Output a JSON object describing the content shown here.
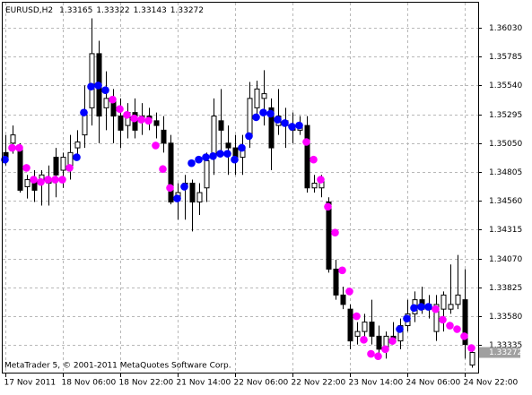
{
  "chart_data": {
    "type": "candlestick",
    "title": "EURUSD,H2",
    "footer": "MetaTrader 5, © 2001-2011 MetaQuotes Software Corp.",
    "categories": [
      "17 Nov 2011",
      null,
      null,
      null,
      null,
      null,
      null,
      null,
      "18 Nov 06:00",
      null,
      null,
      null,
      null,
      null,
      null,
      null,
      "18 Nov 22:00",
      null,
      null,
      null,
      null,
      null,
      null,
      null,
      "21 Nov 14:00",
      null,
      null,
      null,
      null,
      null,
      null,
      null,
      "22 Nov 06:00",
      null,
      null,
      null,
      null,
      null,
      null,
      null,
      "22 Nov 22:00",
      null,
      null,
      null,
      null,
      null,
      null,
      null,
      "23 Nov 14:00",
      null,
      null,
      null,
      null,
      null,
      null,
      null,
      "24 Nov 06:00",
      null,
      null,
      null,
      null,
      null,
      null,
      null,
      "24 Nov 22:00",
      null
    ],
    "open": [
      1.3497,
      1.3505,
      1.3501,
      1.3468,
      1.3474,
      1.3471,
      1.3474,
      1.3493,
      1.3482,
      1.3486,
      1.3501,
      1.3512,
      1.3535,
      1.3581,
      1.3535,
      1.3543,
      1.3528,
      1.352,
      1.3531,
      1.3524,
      1.3528,
      1.3524,
      1.3516,
      1.3505,
      1.3459,
      1.3467,
      1.3471,
      1.3455,
      1.3467,
      1.3493,
      1.3524,
      1.3505,
      1.3501,
      1.3493,
      1.3512,
      1.3535,
      1.3543,
      1.3535,
      1.352,
      1.3524,
      1.352,
      1.3516,
      1.352,
      1.3467,
      1.3467,
      1.3455,
      1.3398,
      1.3376,
      1.3364,
      1.3341,
      1.3345,
      1.3353,
      1.3341,
      1.333,
      1.3341,
      1.3337,
      1.335,
      1.336,
      1.3372,
      1.3364,
      1.3345,
      1.3364,
      1.3364,
      1.3368,
      1.3372,
      1.33165
    ],
    "high": [
      1.3512,
      1.352,
      1.3505,
      1.3478,
      1.3482,
      1.3482,
      1.3486,
      1.3501,
      1.3497,
      1.3512,
      1.3516,
      1.3554,
      1.3611,
      1.3592,
      1.3566,
      1.3551,
      1.3543,
      1.3539,
      1.3543,
      1.3539,
      1.3535,
      1.3531,
      1.3528,
      1.3512,
      1.3471,
      1.3478,
      1.3474,
      1.3471,
      1.3497,
      1.3543,
      1.3551,
      1.352,
      1.3512,
      1.3512,
      1.3557,
      1.3558,
      1.3567,
      1.3543,
      1.3551,
      1.3535,
      1.3531,
      1.3528,
      1.3528,
      1.3478,
      1.3478,
      1.3459,
      1.3406,
      1.3383,
      1.3368,
      1.3353,
      1.336,
      1.3372,
      1.335,
      1.3345,
      1.3353,
      1.3356,
      1.3372,
      1.3379,
      1.3383,
      1.3376,
      1.3376,
      1.3379,
      1.3402,
      1.341,
      1.3398,
      1.33322
    ],
    "low": [
      1.3486,
      1.3496,
      1.3463,
      1.3458,
      1.3455,
      1.3452,
      1.3452,
      1.3459,
      1.3467,
      1.3474,
      1.3493,
      1.3501,
      1.352,
      1.3505,
      1.3516,
      1.3505,
      1.3501,
      1.3509,
      1.3509,
      1.3512,
      1.3516,
      1.3509,
      1.3497,
      1.3453,
      1.344,
      1.344,
      1.343,
      1.3444,
      1.3455,
      1.3478,
      1.3493,
      1.3478,
      1.3478,
      1.3478,
      1.3501,
      1.3528,
      1.352,
      1.3482,
      1.3512,
      1.3501,
      1.3505,
      1.3512,
      1.3463,
      1.3463,
      1.3459,
      1.3395,
      1.3372,
      1.3364,
      1.333,
      1.3334,
      1.3337,
      1.3334,
      1.3326,
      1.3322,
      1.3334,
      1.333,
      1.3345,
      1.3353,
      1.336,
      1.3356,
      1.3337,
      1.3345,
      1.336,
      1.3364,
      1.3322,
      1.33143
    ],
    "close": [
      1.349,
      1.3512,
      1.3465,
      1.3474,
      1.3465,
      1.3478,
      1.3471,
      1.3478,
      1.3493,
      1.3497,
      1.3506,
      1.3529,
      1.3581,
      1.3528,
      1.3543,
      1.3528,
      1.3516,
      1.3531,
      1.3516,
      1.3528,
      1.3524,
      1.352,
      1.3505,
      1.3455,
      1.3463,
      1.3471,
      1.3455,
      1.3463,
      1.349,
      1.3528,
      1.3516,
      1.3501,
      1.3493,
      1.3501,
      1.3543,
      1.3551,
      1.3547,
      1.3501,
      1.3528,
      1.352,
      1.3516,
      1.352,
      1.3467,
      1.3471,
      1.3474,
      1.3398,
      1.3376,
      1.3368,
      1.3337,
      1.3345,
      1.3353,
      1.3341,
      1.333,
      1.3341,
      1.3337,
      1.335,
      1.336,
      1.3372,
      1.3364,
      1.3368,
      1.3368,
      1.3376,
      1.3368,
      1.3376,
      1.3334,
      1.33272
    ],
    "indicator": {
      "values": [
        1.3491,
        1.3501,
        1.3501,
        1.3484,
        1.3474,
        1.3472,
        1.3474,
        1.3474,
        1.3474,
        1.3484,
        1.3493,
        1.3531,
        1.3553,
        1.3554,
        1.355,
        1.3542,
        1.3534,
        1.3529,
        1.3526,
        1.3525,
        1.3524,
        1.3503,
        1.3483,
        1.3467,
        1.3458,
        1.3468,
        1.3488,
        1.3491,
        1.3493,
        1.3494,
        1.3496,
        1.3496,
        1.3491,
        1.3501,
        1.3511,
        1.3527,
        1.3531,
        1.353,
        1.3525,
        1.3522,
        1.3519,
        1.352,
        1.3506,
        1.3491,
        1.3474,
        1.3451,
        1.3429,
        1.3397,
        1.3379,
        1.3358,
        1.3338,
        1.3326,
        1.3324,
        1.333,
        1.3337,
        1.3347,
        1.3356,
        1.3365,
        1.3366,
        1.3366,
        1.3364,
        1.3355,
        1.335,
        1.3347,
        1.3341,
        1.3331
      ],
      "colors": [
        "#0000ff",
        "#ff00ff",
        "#ff00ff",
        "#ff00ff",
        "#ff00ff",
        "#ff00ff",
        "#ff00ff",
        "#ff00ff",
        "#ff00ff",
        "#ff00ff",
        "#0000ff",
        "#0000ff",
        "#0000ff",
        "#0000ff",
        "#0000ff",
        "#ff00ff",
        "#ff00ff",
        "#ff00ff",
        "#ff00ff",
        "#ff00ff",
        "#ff00ff",
        "#ff00ff",
        "#ff00ff",
        "#ff00ff",
        "#0000ff",
        "#0000ff",
        "#0000ff",
        "#0000ff",
        "#0000ff",
        "#0000ff",
        "#0000ff",
        "#0000ff",
        "#0000ff",
        "#0000ff",
        "#0000ff",
        "#0000ff",
        "#0000ff",
        "#0000ff",
        "#0000ff",
        "#0000ff",
        "#0000ff",
        "#0000ff",
        "#ff00ff",
        "#ff00ff",
        "#ff00ff",
        "#ff00ff",
        "#ff00ff",
        "#ff00ff",
        "#ff00ff",
        "#ff00ff",
        "#ff00ff",
        "#ff00ff",
        "#ff00ff",
        "#ff00ff",
        "#ff00ff",
        "#0000ff",
        "#0000ff",
        "#0000ff",
        "#0000ff",
        "#0000ff",
        "#ff00ff",
        "#ff00ff",
        "#ff00ff",
        "#ff00ff",
        "#ff00ff",
        "#ff00ff"
      ]
    },
    "ylim": [
      1.33101,
      1.36243
    ],
    "yticks": [
      1.33335,
      {
        "value": 1.3358,
        "label": "1.33580"
      },
      1.33825,
      {
        "value": 1.3407,
        "label": "1.34070"
      },
      1.34315,
      {
        "value": 1.3456,
        "label": "1.34560"
      },
      1.34805,
      {
        "value": 1.3505,
        "label": "1.35050"
      },
      1.35295,
      {
        "value": 1.3554,
        "label": "1.35540"
      },
      1.35785,
      {
        "value": 1.3603,
        "label": "1.36030"
      }
    ],
    "grid": true,
    "up_color": "#ffffff",
    "down_color": "#000000",
    "price_label_color": "#a0a0a0"
  }
}
